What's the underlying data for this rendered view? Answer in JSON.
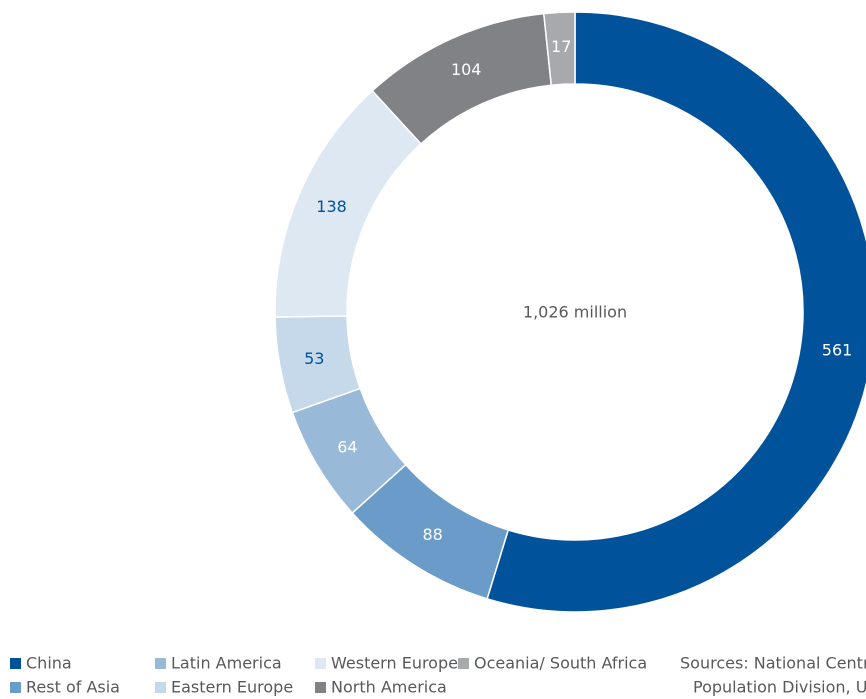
{
  "chart_data": {
    "type": "pie",
    "center_label": "1,026 million",
    "categories": [
      "China",
      "Rest of Asia",
      "Latin America",
      "Eastern Europe",
      "Western Europe",
      "North America",
      "Oceania/ South Africa"
    ],
    "values": [
      561,
      88,
      64,
      53,
      138,
      104,
      17
    ],
    "colors": [
      "#00529b",
      "#6b9bc8",
      "#98bad8",
      "#c6d9ea",
      "#dde8f2",
      "#808285",
      "#a7a9ac"
    ],
    "source": [
      "Sources: National Centr",
      "Population Division, U"
    ]
  }
}
